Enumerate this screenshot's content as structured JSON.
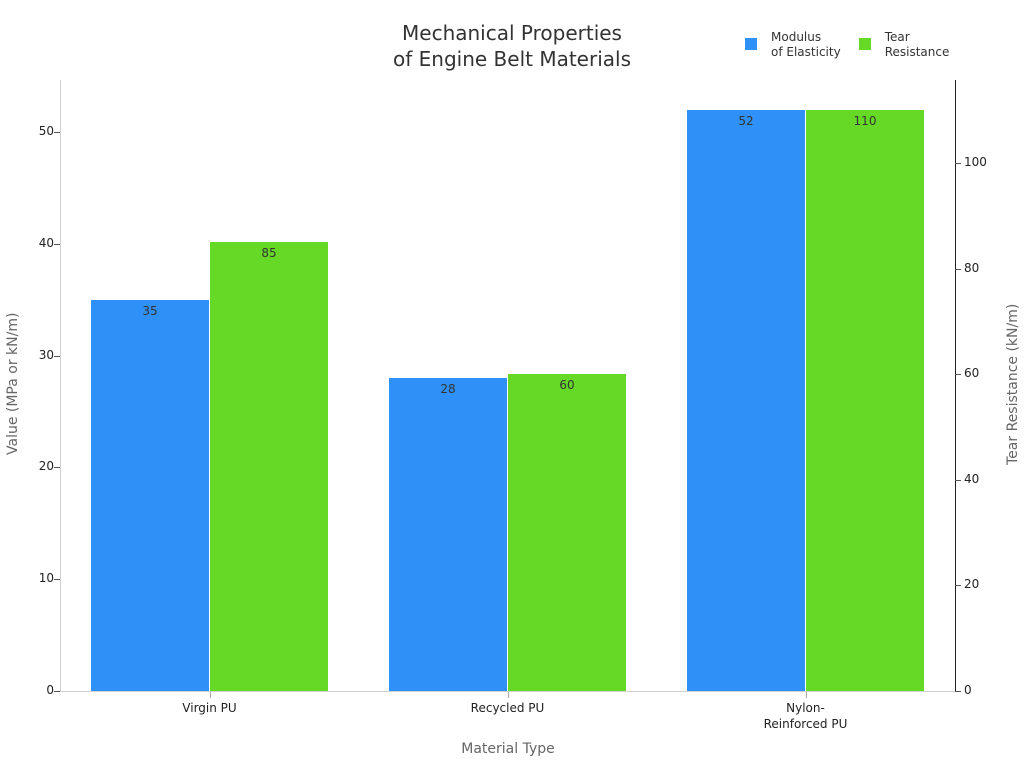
{
  "chart_data": {
    "type": "bar",
    "title": "Mechanical Properties\nof Engine Belt Materials",
    "title_lines": [
      "Mechanical Properties",
      "of Engine Belt Materials"
    ],
    "xlabel": "Material Type",
    "ylabel": "Value (MPa or kN/m)",
    "y2label": "Tear Resistance (kN/m)",
    "categories": [
      "Virgin PU",
      "Recycled PU",
      "Nylon-\nReinforced PU"
    ],
    "series": [
      {
        "name": "Modulus of Elasticity",
        "axis": "left",
        "color": "#2f91f7",
        "values": [
          35,
          28,
          52
        ]
      },
      {
        "name": "Tear Resistance",
        "axis": "right",
        "color": "#66d926",
        "values": [
          85,
          60,
          110
        ]
      }
    ],
    "ylim": [
      0,
      54.7
    ],
    "y2lim": [
      0,
      115.8
    ],
    "yticks": [
      0,
      10,
      20,
      30,
      40,
      50
    ],
    "y2ticks": [
      0,
      20,
      40,
      60,
      80,
      100
    ],
    "legend_position": "top-right",
    "grid": false
  },
  "legend": [
    {
      "label": "Modulus\nof Elasticity",
      "color": "#2f91f7"
    },
    {
      "label": "Tear\nResistance",
      "color": "#66d926"
    }
  ],
  "axes": {
    "x_title": "Material Type",
    "y_title": "Value (MPa or kN/m)",
    "y2_title": "Tear Resistance (kN/m)"
  }
}
